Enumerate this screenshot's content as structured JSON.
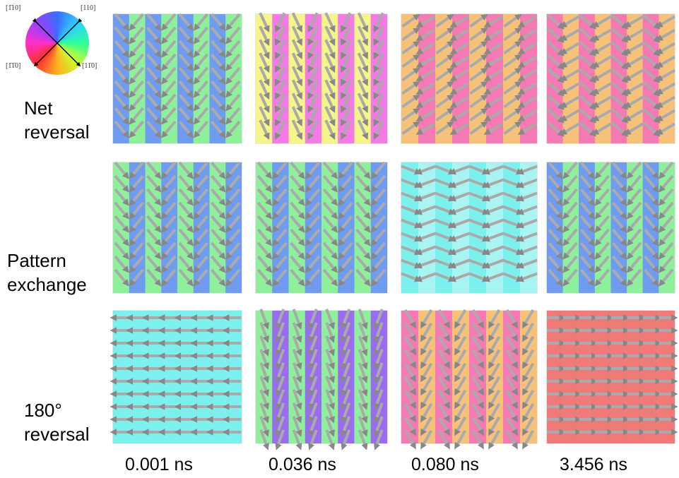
{
  "legend": {
    "directions": [
      "[1̄10]",
      "[110]",
      "[1̄1̄0]",
      "[11̄0]"
    ]
  },
  "rows": [
    {
      "label": [
        "Net",
        "reversal"
      ]
    },
    {
      "label": [
        "Pattern",
        "exchange"
      ]
    },
    {
      "label": [
        "180°",
        "reversal"
      ]
    }
  ],
  "times": [
    "0.001 ns",
    "0.036 ns",
    "0.080 ns",
    "3.456 ns"
  ]
}
